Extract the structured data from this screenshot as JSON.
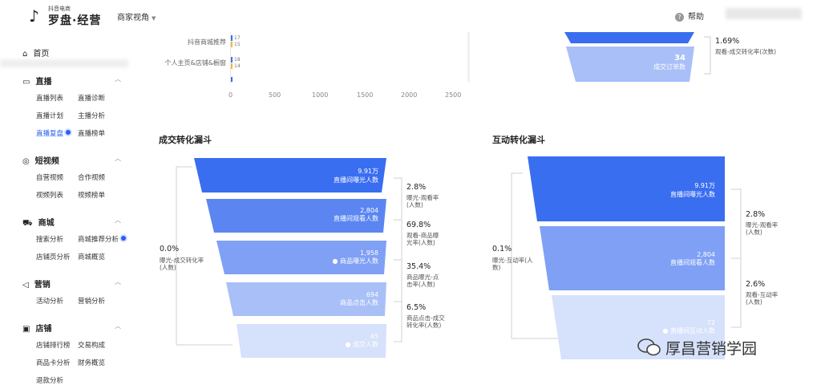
{
  "header": {
    "logo_top": "抖音电商",
    "logo_main": "罗盘·经营",
    "view_switch": "商家视角",
    "help": "帮助"
  },
  "sidebar": {
    "home": "首页",
    "sections": [
      {
        "title": "直播",
        "items": [
          "直播列表",
          "直播诊断",
          "直播计划",
          "主播分析",
          "直播复盘",
          "直播榜单"
        ]
      },
      {
        "title": "短视频",
        "items": [
          "自营视频",
          "合作视频",
          "视频列表",
          "视频榜单"
        ]
      },
      {
        "title": "商城",
        "items": [
          "搜索分析",
          "商城推荐分析",
          "店铺页分析",
          "商城概览"
        ]
      },
      {
        "title": "营销",
        "items": [
          "活动分析",
          "营销分析"
        ]
      },
      {
        "title": "店铺",
        "items": [
          "店铺排行榜",
          "交易构成",
          "商品卡分析",
          "财务概览",
          "退款分析"
        ]
      }
    ]
  },
  "top_chart": {
    "rows": [
      {
        "label": "抖音商城推荐",
        "v1": "17",
        "v2": "15"
      },
      {
        "label": "个人主页&店铺&橱窗",
        "v1": "18",
        "v2": "14"
      }
    ],
    "ticks": [
      "0",
      "500",
      "1000",
      "1500",
      "2000",
      "2500"
    ]
  },
  "top_right": {
    "bottom_value": "34",
    "bottom_label": "成交订单数",
    "rate_pct": "1.69%",
    "rate_label": "观看-成交转化率(次数)"
  },
  "deal_funnel": {
    "title": "成交转化漏斗",
    "stages": [
      {
        "value": "9.91万",
        "label": "直播间曝光人数"
      },
      {
        "value": "2,804",
        "label": "直播间观看人数"
      },
      {
        "value": "1,958",
        "label": "商品曝光人数"
      },
      {
        "value": "694",
        "label": "商品点击人数"
      },
      {
        "value": "45",
        "label": "成交人数"
      }
    ],
    "rates": [
      {
        "pct": "2.8%",
        "label": "曝光-观看率(人数)"
      },
      {
        "pct": "69.8%",
        "label": "观看-商品曝光率(人数)"
      },
      {
        "pct": "35.4%",
        "label": "商品曝光-点击率(人数)"
      },
      {
        "pct": "6.5%",
        "label": "商品点击-成交转化率(人数)"
      }
    ],
    "overall": {
      "pct": "0.0%",
      "label": "曝光-成交转化率(人数)"
    }
  },
  "interact_funnel": {
    "title": "互动转化漏斗",
    "stages": [
      {
        "value": "9.91万",
        "label": "直播间曝光人数"
      },
      {
        "value": "2,804",
        "label": "直播间观看人数"
      },
      {
        "value": "72",
        "label": "直播间互动人数"
      }
    ],
    "rates": [
      {
        "pct": "2.8%",
        "label": "曝光-观看率(人数)"
      },
      {
        "pct": "2.6%",
        "label": "观看-互动率(人数)"
      }
    ],
    "overall": {
      "pct": "0.1%",
      "label": "曝光-互动率(人数)"
    }
  },
  "watermark": "厚昌营销学园",
  "colors": {
    "funnel_1": "#3a6ef0",
    "funnel_2": "#5b86f2",
    "funnel_3": "#7fa0f4",
    "funnel_4": "#a9bff7",
    "funnel_5": "#d6e1fb",
    "accent": "#1f5bea"
  }
}
